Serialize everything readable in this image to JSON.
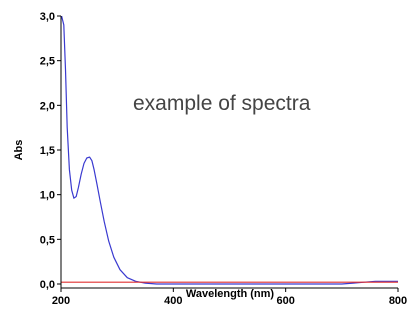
{
  "chart_data": {
    "type": "line",
    "title": "",
    "annotation": "example of spectra",
    "xlabel": "Wavelength (nm)",
    "ylabel": "Abs",
    "xlim": [
      200,
      800
    ],
    "ylim": [
      -0.05,
      3.0
    ],
    "x_ticks": [
      200,
      400,
      600,
      800
    ],
    "x_tick_labels": [
      "200",
      "400",
      "600",
      "800"
    ],
    "y_ticks": [
      0.0,
      0.5,
      1.0,
      1.5,
      2.0,
      2.5,
      3.0
    ],
    "y_tick_labels": [
      "0,0",
      "0,5",
      "1,0",
      "1,5",
      "2,0",
      "2,5",
      "3,0"
    ],
    "grid": false,
    "series": [
      {
        "color": "#3a3ad0",
        "x": [
          201,
          205,
          208,
          211,
          215,
          219,
          223,
          227,
          231,
          236,
          241,
          246,
          251,
          255,
          259,
          264,
          270,
          277,
          285,
          294,
          305,
          318,
          333,
          350,
          370,
          400,
          450,
          500,
          550,
          600,
          650,
          700,
          720,
          740,
          760,
          780,
          800
        ],
        "y": [
          3.0,
          2.9,
          2.4,
          1.75,
          1.28,
          1.05,
          0.96,
          0.98,
          1.08,
          1.23,
          1.35,
          1.41,
          1.42,
          1.38,
          1.28,
          1.12,
          0.92,
          0.7,
          0.48,
          0.3,
          0.16,
          0.07,
          0.03,
          0.01,
          0.0,
          0.0,
          0.0,
          0.0,
          0.0,
          0.0,
          0.0,
          0.0,
          0.01,
          0.02,
          0.03,
          0.03,
          0.03
        ]
      },
      {
        "color": "#e03030",
        "x": [
          200,
          800
        ],
        "y": [
          0.02,
          0.02
        ]
      }
    ]
  }
}
